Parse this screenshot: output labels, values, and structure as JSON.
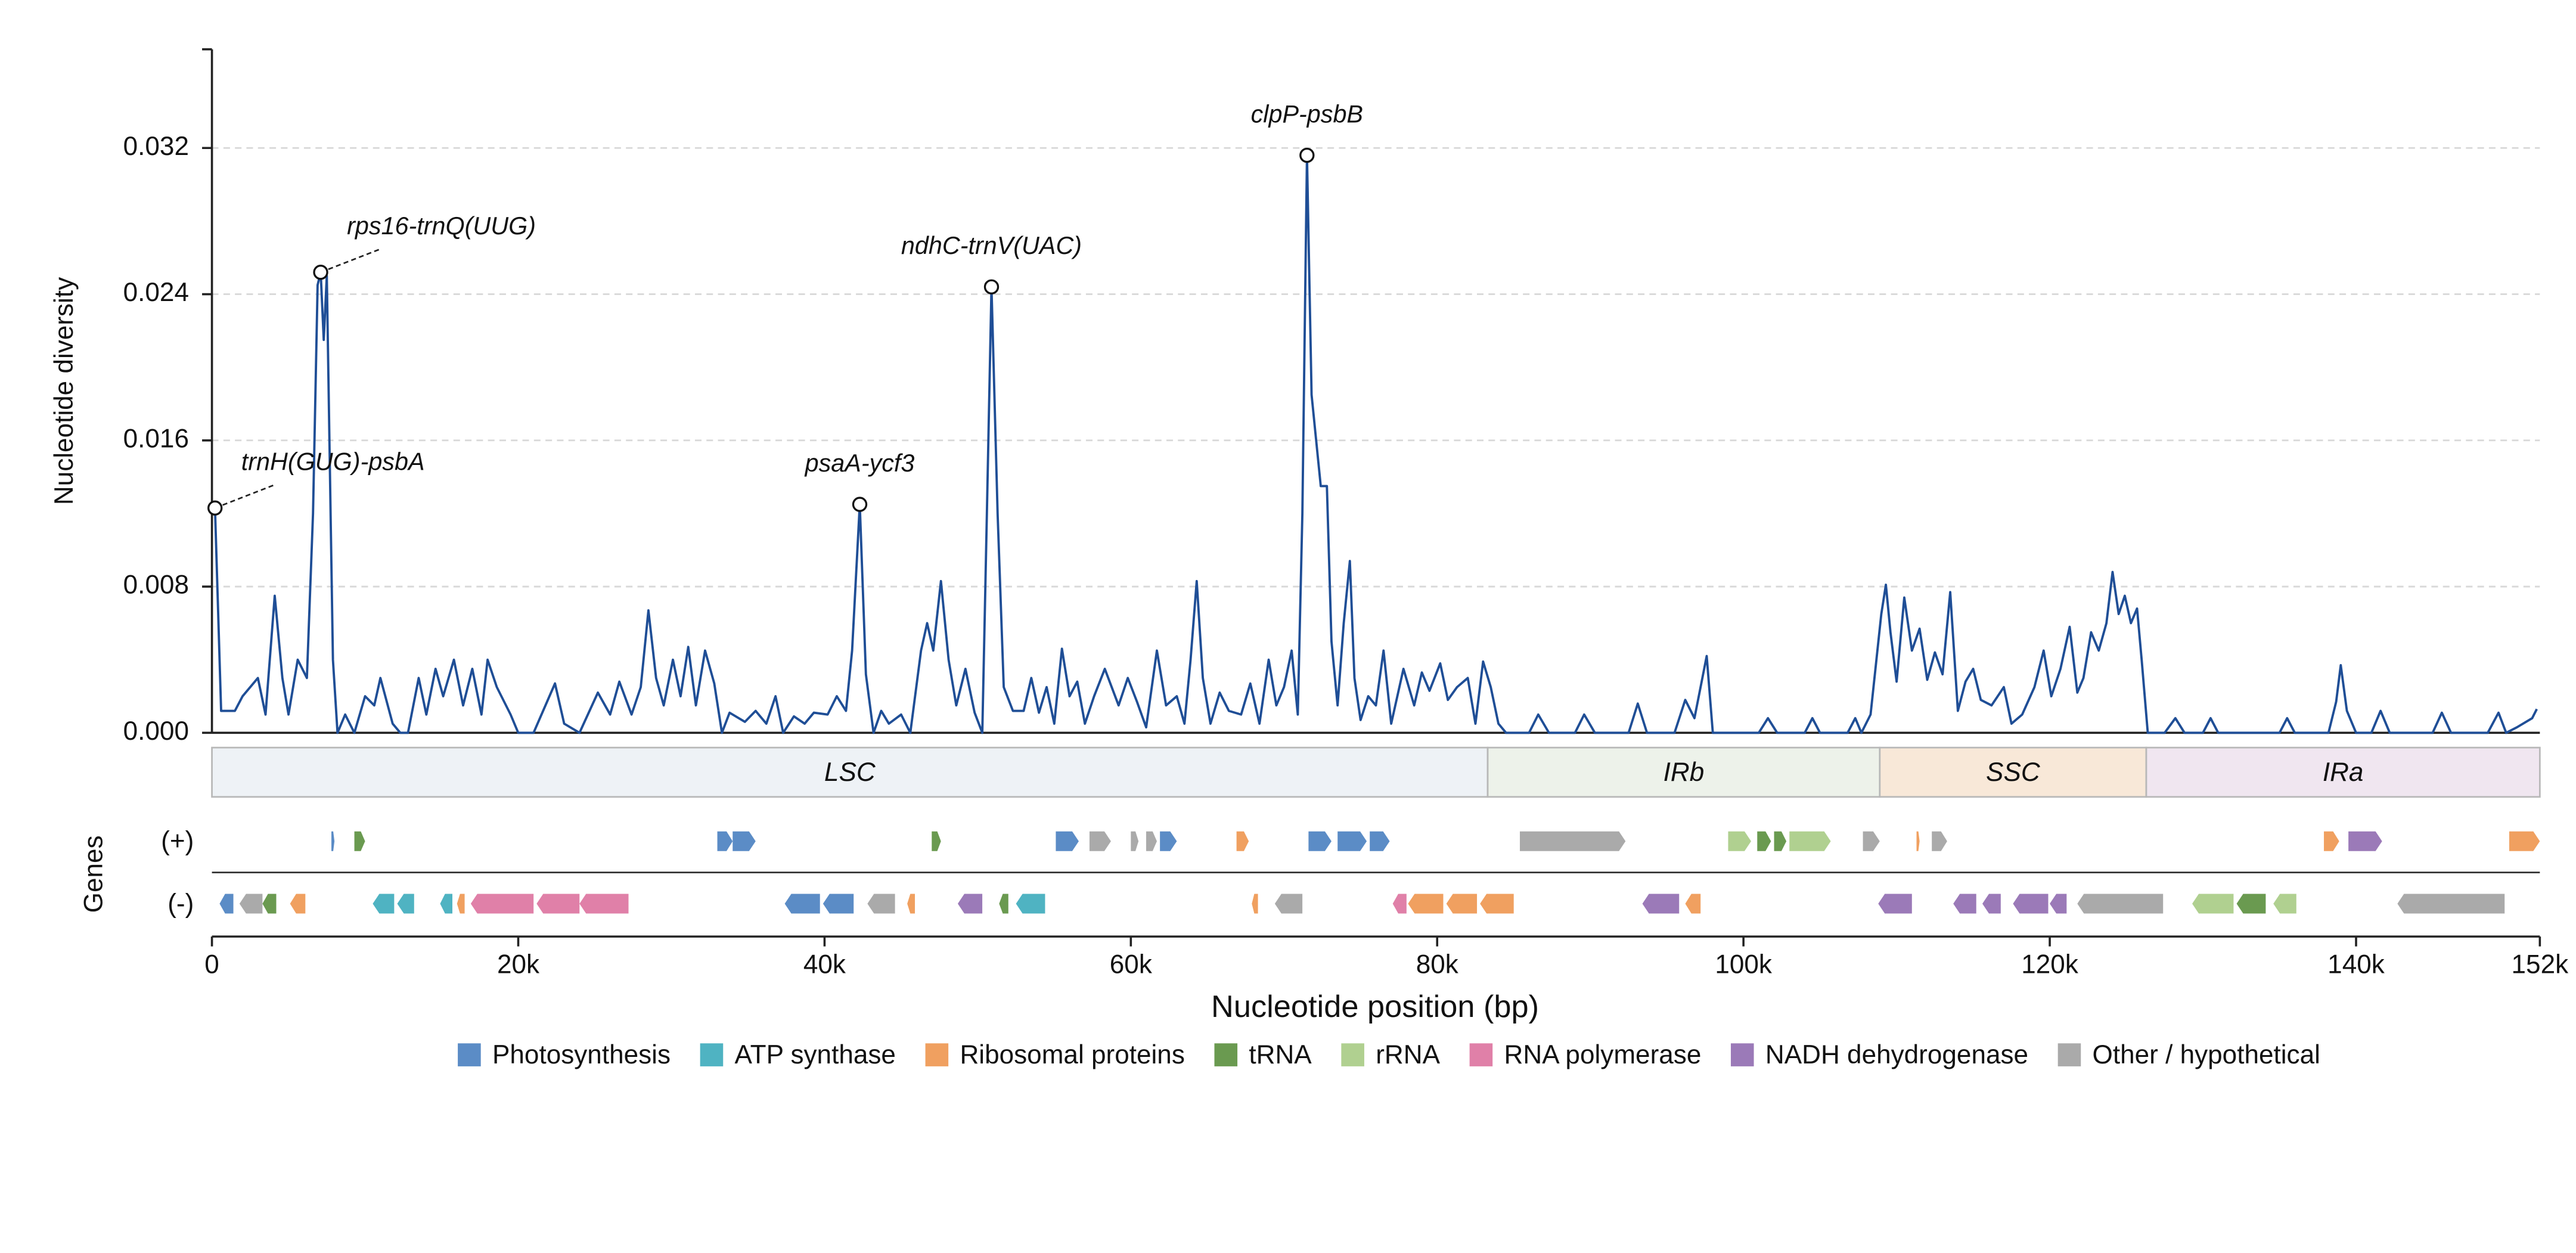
{
  "chart_data": {
    "type": "line",
    "y_label": "Nucleotide diversity",
    "x_label": "Nucleotide position (bp)",
    "xlim": [
      0,
      152000
    ],
    "xticks": [
      0,
      {
        "value": 20000,
        "label": "20k"
      },
      {
        "value": 40000,
        "label": "40k"
      },
      {
        "value": 60000,
        "label": "60k"
      },
      {
        "value": 80000,
        "label": "80k"
      },
      {
        "value": 100000,
        "label": "100k"
      },
      {
        "value": 120000,
        "label": "120k"
      },
      {
        "value": 140000,
        "label": "140k"
      },
      {
        "value": 152000,
        "label": "152k"
      }
    ],
    "ylim": [
      0,
      0.0374
    ],
    "yticks": [
      {
        "value": 0,
        "label": "0.000"
      },
      {
        "value": 0.008,
        "label": "0.008"
      },
      {
        "value": 0.016,
        "label": "0.016"
      },
      {
        "value": 0.024,
        "label": "0.024"
      },
      {
        "value": 0.032,
        "label": "0.032"
      }
    ],
    "grid": true,
    "x": [
      200,
      600,
      1500,
      2000,
      3000,
      3500,
      4100,
      4600,
      5000,
      5600,
      6200,
      6600,
      6900,
      7100,
      7300,
      7500,
      7900,
      8200,
      8700,
      9300,
      10000,
      10600,
      11000,
      11800,
      12300,
      12800,
      13500,
      14000,
      14600,
      15100,
      15800,
      16400,
      17000,
      17600,
      18000,
      18600,
      19500,
      20000,
      21000,
      22400,
      23000,
      24000,
      25200,
      26000,
      26600,
      27400,
      28000,
      28500,
      29000,
      29500,
      30100,
      30600,
      31100,
      31600,
      32200,
      32800,
      33300,
      33800,
      34800,
      35500,
      36200,
      36800,
      37300,
      38000,
      38700,
      39300,
      40200,
      40800,
      41400,
      41800,
      42300,
      42700,
      43200,
      43700,
      44200,
      45000,
      45600,
      46300,
      46700,
      47100,
      47600,
      48100,
      48600,
      49200,
      49800,
      50300,
      50600,
      50900,
      51300,
      51700,
      52300,
      53000,
      53500,
      54000,
      54500,
      55000,
      55500,
      56000,
      56500,
      57000,
      57600,
      58300,
      59200,
      59800,
      60400,
      61000,
      61700,
      62300,
      63000,
      63500,
      63900,
      64300,
      64700,
      65200,
      65800,
      66400,
      67200,
      67800,
      68400,
      69000,
      69500,
      70000,
      70500,
      70900,
      71200,
      71500,
      71800,
      72100,
      72400,
      72800,
      73100,
      73500,
      73900,
      74300,
      74600,
      75000,
      75500,
      76000,
      76500,
      77000,
      77800,
      78500,
      79000,
      79500,
      80200,
      80700,
      81300,
      82000,
      82500,
      83000,
      83500,
      84000,
      84500,
      86000,
      86600,
      87300,
      89000,
      89600,
      90300,
      92500,
      93100,
      93700,
      95500,
      96200,
      96800,
      97600,
      98000,
      101000,
      101600,
      102200,
      104000,
      104500,
      105000,
      106800,
      107300,
      107700,
      108300,
      109000,
      109300,
      109600,
      110000,
      110500,
      111000,
      111500,
      112000,
      112500,
      113000,
      113500,
      114000,
      114500,
      115000,
      115500,
      116200,
      117000,
      117500,
      118200,
      119000,
      119600,
      120100,
      120700,
      121300,
      121800,
      122200,
      122700,
      123200,
      123700,
      124100,
      124500,
      124900,
      125300,
      125700,
      126000,
      126400,
      127500,
      128200,
      128800,
      130000,
      130500,
      131000,
      135000,
      135500,
      136000,
      138200,
      138700,
      139000,
      139400,
      140000,
      141000,
      141600,
      142200,
      145000,
      145600,
      146200,
      148600,
      149300,
      149800,
      150500,
      151500,
      151800
    ],
    "series": [
      {
        "color": "#1f4e96",
        "values": [
          0.0123,
          0.0012,
          0.0012,
          0.002,
          0.003,
          0.001,
          0.0075,
          0.003,
          0.001,
          0.004,
          0.003,
          0.012,
          0.0245,
          0.0252,
          0.0215,
          0.025,
          0.004,
          0,
          0.001,
          0,
          0.002,
          0.0015,
          0.003,
          0.0005,
          0,
          0,
          0.003,
          0.001,
          0.0035,
          0.002,
          0.004,
          0.0015,
          0.0035,
          0.001,
          0.004,
          0.0025,
          0.001,
          0,
          0,
          0.0027,
          0.0005,
          0,
          0.0022,
          0.001,
          0.0028,
          0.001,
          0.0025,
          0.0067,
          0.003,
          0.0015,
          0.004,
          0.002,
          0.0047,
          0.0015,
          0.0045,
          0.0027,
          0,
          0.0011,
          0.0006,
          0.0012,
          0.0005,
          0.002,
          0,
          0.0009,
          0.0005,
          0.0011,
          0.001,
          0.002,
          0.0012,
          0.0045,
          0.0125,
          0.0032,
          0,
          0.0012,
          0.0005,
          0.001,
          0,
          0.0045,
          0.006,
          0.0045,
          0.0083,
          0.004,
          0.0015,
          0.0035,
          0.0011,
          0,
          0.012,
          0.0244,
          0.012,
          0.0025,
          0.0012,
          0.0012,
          0.003,
          0.0011,
          0.0025,
          0.0005,
          0.0046,
          0.002,
          0.0028,
          0.0005,
          0.002,
          0.0035,
          0.0015,
          0.003,
          0.0017,
          0.0003,
          0.0045,
          0.0015,
          0.002,
          0.0005,
          0.004,
          0.0083,
          0.003,
          0.0005,
          0.0022,
          0.0012,
          0.001,
          0.0027,
          0.0005,
          0.004,
          0.0015,
          0.0025,
          0.0045,
          0.001,
          0.012,
          0.0316,
          0.0185,
          0.016,
          0.0135,
          0.0135,
          0.005,
          0.0015,
          0.006,
          0.0094,
          0.003,
          0.0007,
          0.002,
          0.0015,
          0.0045,
          0.0005,
          0.0035,
          0.0015,
          0.0033,
          0.0023,
          0.0038,
          0.0018,
          0.0025,
          0.003,
          0.0005,
          0.0039,
          0.0025,
          0.0005,
          0,
          0,
          0.001,
          0,
          0,
          0.001,
          0,
          0,
          0.0016,
          0,
          0,
          0.0018,
          0.0008,
          0.0042,
          0,
          0,
          0.0008,
          0,
          0,
          0.0008,
          0,
          0,
          0.0008,
          0,
          0.001,
          0.0065,
          0.0081,
          0.0055,
          0.0028,
          0.0074,
          0.0045,
          0.0057,
          0.0029,
          0.0044,
          0.0032,
          0.0077,
          0.0012,
          0.0028,
          0.0035,
          0.0018,
          0.0015,
          0.0025,
          0.0005,
          0.001,
          0.0025,
          0.0045,
          0.002,
          0.0035,
          0.0058,
          0.0022,
          0.003,
          0.0055,
          0.0045,
          0.006,
          0.0088,
          0.0065,
          0.0075,
          0.006,
          0.0068,
          0.004,
          0,
          0,
          0.0008,
          0,
          0,
          0.0008,
          0,
          0,
          0.0008,
          0,
          0,
          0.0017,
          0.0037,
          0.0012,
          0,
          0,
          0.0012,
          0,
          0,
          0.0011,
          0,
          0,
          0.0011,
          0,
          0.0003,
          0.0008,
          0.0013
        ]
      }
    ],
    "annotations": [
      {
        "text": "trnH(GUG)-psbA",
        "x": 200,
        "y": 0.0123
      },
      {
        "text": "rps16-trnQ(UUG)",
        "x": 7100,
        "y": 0.0252
      },
      {
        "text": "psaA-ycf3",
        "x": 42300,
        "y": 0.0125
      },
      {
        "text": "ndhC-trnV(UAC)",
        "x": 50900,
        "y": 0.0244
      },
      {
        "text": "clpP-psbB",
        "x": 71500,
        "y": 0.0316
      }
    ],
    "regions": [
      {
        "name": "LSC",
        "start": 0,
        "end": 83300,
        "color": "#eef2f6"
      },
      {
        "name": "IRb",
        "start": 83300,
        "end": 108900,
        "color": "#edf2ea"
      },
      {
        "name": "SSC",
        "start": 108900,
        "end": 126300,
        "color": "#f8e8d8"
      },
      {
        "name": "IRa",
        "start": 126300,
        "end": 152000,
        "color": "#f0e6f0"
      }
    ],
    "genes_label": "Genes",
    "strand_labels": [
      "(+)",
      "(-)"
    ],
    "gene_categories": [
      {
        "name": "Photosynthesis",
        "color": "#5b8cc6"
      },
      {
        "name": "ATP synthase",
        "color": "#4fb3c2"
      },
      {
        "name": "Ribosomal proteins",
        "color": "#f0a060"
      },
      {
        "name": "tRNA",
        "color": "#6a9a50"
      },
      {
        "name": "rRNA",
        "color": "#b0d090"
      },
      {
        "name": "RNA polymerase",
        "color": "#e080a8"
      },
      {
        "name": "NADH dehydrogenase",
        "color": "#9b7ab8"
      },
      {
        "name": "Other / hypothetical",
        "color": "#aaaaaa"
      }
    ],
    "genes": [
      {
        "start": 7800,
        "end": 8000,
        "strand": 1,
        "category": 0
      },
      {
        "start": 9300,
        "end": 10000,
        "strand": 1,
        "category": 3
      },
      {
        "start": 33000,
        "end": 34000,
        "strand": 1,
        "category": 0
      },
      {
        "start": 34000,
        "end": 35500,
        "strand": 1,
        "category": 0
      },
      {
        "start": 47000,
        "end": 47600,
        "strand": 1,
        "category": 3
      },
      {
        "start": 55100,
        "end": 56600,
        "strand": 1,
        "category": 0
      },
      {
        "start": 57300,
        "end": 58700,
        "strand": 1,
        "category": 7
      },
      {
        "start": 60000,
        "end": 60500,
        "strand": 1,
        "category": 7
      },
      {
        "start": 61000,
        "end": 61700,
        "strand": 1,
        "category": 7
      },
      {
        "start": 61900,
        "end": 63000,
        "strand": 1,
        "category": 0
      },
      {
        "start": 66900,
        "end": 67700,
        "strand": 1,
        "category": 2
      },
      {
        "start": 71600,
        "end": 73100,
        "strand": 1,
        "category": 0
      },
      {
        "start": 73500,
        "end": 75400,
        "strand": 1,
        "category": 0
      },
      {
        "start": 75600,
        "end": 76900,
        "strand": 1,
        "category": 0
      },
      {
        "start": 85400,
        "end": 92300,
        "strand": 1,
        "category": 7
      },
      {
        "start": 99000,
        "end": 100500,
        "strand": 1,
        "category": 4
      },
      {
        "start": 100900,
        "end": 101800,
        "strand": 1,
        "category": 3
      },
      {
        "start": 102000,
        "end": 102800,
        "strand": 1,
        "category": 3
      },
      {
        "start": 103000,
        "end": 105700,
        "strand": 1,
        "category": 4
      },
      {
        "start": 107800,
        "end": 108900,
        "strand": 1,
        "category": 7
      },
      {
        "start": 111300,
        "end": 111500,
        "strand": 1,
        "category": 2
      },
      {
        "start": 112300,
        "end": 113300,
        "strand": 1,
        "category": 7
      },
      {
        "start": 137900,
        "end": 138900,
        "strand": 1,
        "category": 2
      },
      {
        "start": 139500,
        "end": 141700,
        "strand": 1,
        "category": 6
      },
      {
        "start": 150000,
        "end": 152000,
        "strand": 1,
        "category": 2
      },
      {
        "start": 500,
        "end": 1400,
        "strand": -1,
        "category": 0
      },
      {
        "start": 1800,
        "end": 3300,
        "strand": -1,
        "category": 7
      },
      {
        "start": 3300,
        "end": 4200,
        "strand": -1,
        "category": 3
      },
      {
        "start": 5100,
        "end": 6100,
        "strand": -1,
        "category": 2
      },
      {
        "start": 10500,
        "end": 11900,
        "strand": -1,
        "category": 1
      },
      {
        "start": 12100,
        "end": 13200,
        "strand": -1,
        "category": 1
      },
      {
        "start": 14900,
        "end": 15700,
        "strand": -1,
        "category": 1
      },
      {
        "start": 16000,
        "end": 16500,
        "strand": -1,
        "category": 2
      },
      {
        "start": 16900,
        "end": 21000,
        "strand": -1,
        "category": 5
      },
      {
        "start": 21200,
        "end": 24000,
        "strand": -1,
        "category": 5
      },
      {
        "start": 24000,
        "end": 27200,
        "strand": -1,
        "category": 5
      },
      {
        "start": 37400,
        "end": 39700,
        "strand": -1,
        "category": 0
      },
      {
        "start": 39900,
        "end": 41900,
        "strand": -1,
        "category": 0
      },
      {
        "start": 42800,
        "end": 44600,
        "strand": -1,
        "category": 7
      },
      {
        "start": 45400,
        "end": 45900,
        "strand": -1,
        "category": 2
      },
      {
        "start": 48700,
        "end": 50300,
        "strand": -1,
        "category": 6
      },
      {
        "start": 51400,
        "end": 52000,
        "strand": -1,
        "category": 3
      },
      {
        "start": 52500,
        "end": 54400,
        "strand": -1,
        "category": 1
      },
      {
        "start": 67900,
        "end": 68300,
        "strand": -1,
        "category": 2
      },
      {
        "start": 69400,
        "end": 71200,
        "strand": -1,
        "category": 7
      },
      {
        "start": 77100,
        "end": 78000,
        "strand": -1,
        "category": 5
      },
      {
        "start": 78100,
        "end": 80400,
        "strand": -1,
        "category": 2
      },
      {
        "start": 80600,
        "end": 82600,
        "strand": -1,
        "category": 2
      },
      {
        "start": 82800,
        "end": 85000,
        "strand": -1,
        "category": 2
      },
      {
        "start": 93400,
        "end": 95800,
        "strand": -1,
        "category": 6
      },
      {
        "start": 96200,
        "end": 97200,
        "strand": -1,
        "category": 2
      },
      {
        "start": 108800,
        "end": 111000,
        "strand": -1,
        "category": 6
      },
      {
        "start": 113700,
        "end": 115200,
        "strand": -1,
        "category": 6
      },
      {
        "start": 115600,
        "end": 116800,
        "strand": -1,
        "category": 6
      },
      {
        "start": 117600,
        "end": 119900,
        "strand": -1,
        "category": 6
      },
      {
        "start": 120000,
        "end": 121100,
        "strand": -1,
        "category": 6
      },
      {
        "start": 121800,
        "end": 127400,
        "strand": -1,
        "category": 7
      },
      {
        "start": 129300,
        "end": 132000,
        "strand": -1,
        "category": 4
      },
      {
        "start": 132200,
        "end": 134100,
        "strand": -1,
        "category": 3
      },
      {
        "start": 134600,
        "end": 136100,
        "strand": -1,
        "category": 4
      },
      {
        "start": 142700,
        "end": 149700,
        "strand": -1,
        "category": 7
      }
    ]
  }
}
